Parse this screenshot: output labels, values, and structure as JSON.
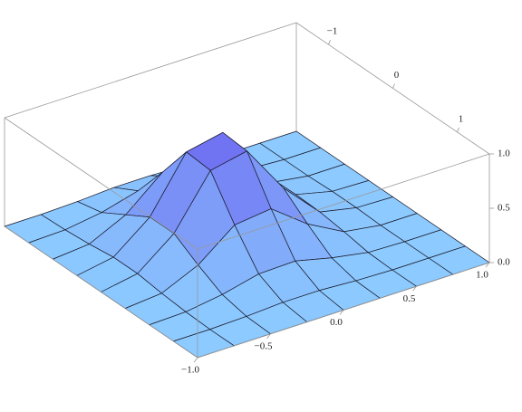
{
  "chart_data": {
    "type": "surface",
    "x": [
      -1,
      -0.75,
      -0.5,
      -0.25,
      0,
      0.25,
      0.5,
      0.75,
      1
    ],
    "y": [
      -1.5,
      -1.125,
      -0.75,
      -0.375,
      0,
      0.375,
      0.75,
      1.125,
      1.5
    ],
    "z": [
      [
        0,
        0,
        0,
        0,
        0,
        0,
        0,
        0,
        0
      ],
      [
        0,
        0.01,
        0.03,
        0.06,
        0.06,
        0.03,
        0.01,
        0,
        0
      ],
      [
        0.01,
        0.06,
        0.19,
        0.32,
        0.32,
        0.18,
        0.06,
        0.01,
        0
      ],
      [
        0.03,
        0.15,
        0.47,
        0.81,
        0.79,
        0.44,
        0.14,
        0.03,
        0
      ],
      [
        0.03,
        0.17,
        0.51,
        0.88,
        0.86,
        0.48,
        0.15,
        0.03,
        0
      ],
      [
        0.02,
        0.08,
        0.24,
        0.42,
        0.41,
        0.23,
        0.07,
        0.01,
        0
      ],
      [
        0,
        0.02,
        0.05,
        0.09,
        0.08,
        0.05,
        0.01,
        0,
        0
      ],
      [
        0,
        0,
        0,
        0.01,
        0.01,
        0,
        0,
        0,
        0
      ],
      [
        0,
        0,
        0,
        0,
        0,
        0,
        0,
        0,
        0
      ]
    ],
    "xlim": [
      -1,
      1
    ],
    "xticks": [
      {
        "value": -1,
        "label": "−1.0"
      },
      {
        "value": -0.5,
        "label": "−0.5"
      },
      {
        "value": 0,
        "label": "0.0"
      },
      0.5,
      {
        "value": 1,
        "label": "1.0"
      }
    ],
    "ylim": [
      -1.5,
      1.5
    ],
    "yticks": [
      {
        "value": -1,
        "label": "−1"
      },
      0,
      1
    ],
    "zlim": [
      0,
      1
    ],
    "zticks": [
      {
        "value": 0,
        "label": "0.0"
      },
      0.5,
      {
        "value": 1,
        "label": "1.0"
      }
    ],
    "colors": [
      "#8ccaff",
      "#6b62f0"
    ]
  }
}
